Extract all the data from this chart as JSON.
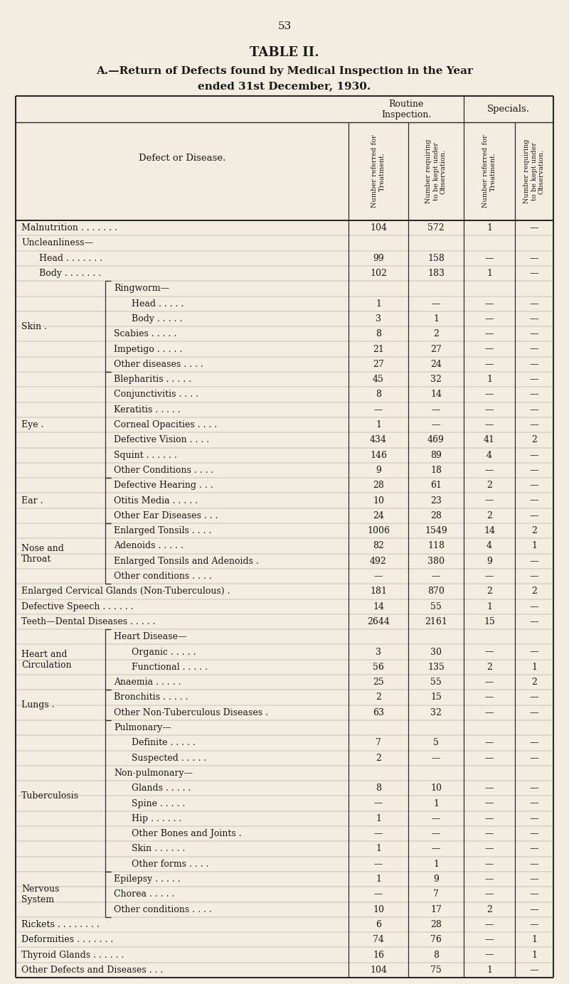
{
  "page_number": "53",
  "title1": "TABLE II.",
  "title2": "A.—Return of Defects found by Medical Inspection in the Year",
  "title3": "ended 31st December, 1930.",
  "col_h_routine": "Routine\nInspection.",
  "col_h_specials": "Specials.",
  "col_h1": "Number referred for\nTreatment.",
  "col_h2": "Number requiring\nto be kept under\nObservation.",
  "col_h3": "Number referred for\nTreatment.",
  "col_h4": "Number requiring\nto be kept under\nObservation.",
  "header_label": "Defect or Disease.",
  "rows": [
    {
      "label": "Malnutrition . . . . . . .",
      "indent": 0,
      "c1": "104",
      "c2": "572",
      "c3": "1",
      "c4": "—"
    },
    {
      "label": "Uncleanliness—",
      "indent": 0,
      "c1": "",
      "c2": "",
      "c3": "",
      "c4": ""
    },
    {
      "label": "Head . . . . . . .",
      "indent": 1,
      "c1": "99",
      "c2": "158",
      "c3": "—",
      "c4": "—"
    },
    {
      "label": "Body . . . . . . .",
      "indent": 1,
      "c1": "102",
      "c2": "183",
      "c3": "1",
      "c4": "—"
    },
    {
      "label": "Ringworm—",
      "indent": 2,
      "c1": "",
      "c2": "",
      "c3": "",
      "c4": ""
    },
    {
      "label": "Head . . . . .",
      "indent": 3,
      "c1": "1",
      "c2": "—",
      "c3": "—",
      "c4": "—"
    },
    {
      "label": "Body . . . . .",
      "indent": 3,
      "c1": "3",
      "c2": "1",
      "c3": "—",
      "c4": "—"
    },
    {
      "label": "Scabies . . . . .",
      "indent": 2,
      "c1": "8",
      "c2": "2",
      "c3": "—",
      "c4": "—"
    },
    {
      "label": "Impetigo . . . . .",
      "indent": 2,
      "c1": "21",
      "c2": "27",
      "c3": "—",
      "c4": "—"
    },
    {
      "label": "Other diseases . . . .",
      "indent": 2,
      "c1": "27",
      "c2": "24",
      "c3": "—",
      "c4": "—"
    },
    {
      "label": "Blepharitis . . . . .",
      "indent": 2,
      "c1": "45",
      "c2": "32",
      "c3": "1",
      "c4": "—"
    },
    {
      "label": "Conjunctivitis . . . .",
      "indent": 2,
      "c1": "8",
      "c2": "14",
      "c3": "—",
      "c4": "—"
    },
    {
      "label": "Keratitis . . . . .",
      "indent": 2,
      "c1": "—",
      "c2": "—",
      "c3": "—",
      "c4": "—"
    },
    {
      "label": "Corneal Opacities . . . .",
      "indent": 2,
      "c1": "1",
      "c2": "—",
      "c3": "—",
      "c4": "—"
    },
    {
      "label": "Defective Vision . . . .",
      "indent": 2,
      "c1": "434",
      "c2": "469",
      "c3": "41",
      "c4": "2"
    },
    {
      "label": "Squint . . . . . .",
      "indent": 2,
      "c1": "146",
      "c2": "89",
      "c3": "4",
      "c4": "—"
    },
    {
      "label": "Other Conditions . . . .",
      "indent": 2,
      "c1": "9",
      "c2": "18",
      "c3": "—",
      "c4": "—"
    },
    {
      "label": "Defective Hearing . . .",
      "indent": 2,
      "c1": "28",
      "c2": "61",
      "c3": "2",
      "c4": "—"
    },
    {
      "label": "Otitis Media . . . . .",
      "indent": 2,
      "c1": "10",
      "c2": "23",
      "c3": "—",
      "c4": "—"
    },
    {
      "label": "Other Ear Diseases . . .",
      "indent": 2,
      "c1": "24",
      "c2": "28",
      "c3": "2",
      "c4": "—"
    },
    {
      "label": "Enlarged Tonsils . . . .",
      "indent": 2,
      "c1": "1006",
      "c2": "1549",
      "c3": "14",
      "c4": "2"
    },
    {
      "label": "Adenoids . . . . .",
      "indent": 2,
      "c1": "82",
      "c2": "118",
      "c3": "4",
      "c4": "1"
    },
    {
      "label": "Enlarged Tonsils and Adenoids .",
      "indent": 2,
      "c1": "492",
      "c2": "380",
      "c3": "9",
      "c4": "—"
    },
    {
      "label": "Other conditions . . . .",
      "indent": 2,
      "c1": "—",
      "c2": "—",
      "c3": "—",
      "c4": "—"
    },
    {
      "label": "Enlarged Cervical Glands (Non-Tuberculous) .",
      "indent": 0,
      "c1": "181",
      "c2": "870",
      "c3": "2",
      "c4": "2"
    },
    {
      "label": "Defective Speech . . . . . .",
      "indent": 0,
      "c1": "14",
      "c2": "55",
      "c3": "1",
      "c4": "—"
    },
    {
      "label": "Teeth—Dental Diseases . . . . .",
      "indent": 0,
      "c1": "2644",
      "c2": "2161",
      "c3": "15",
      "c4": "—"
    },
    {
      "label": "Heart Disease—",
      "indent": 2,
      "c1": "",
      "c2": "",
      "c3": "",
      "c4": ""
    },
    {
      "label": "Organic . . . . .",
      "indent": 3,
      "c1": "3",
      "c2": "30",
      "c3": "—",
      "c4": "—"
    },
    {
      "label": "Functional . . . . .",
      "indent": 3,
      "c1": "56",
      "c2": "135",
      "c3": "2",
      "c4": "1"
    },
    {
      "label": "Anaemia . . . . .",
      "indent": 2,
      "c1": "25",
      "c2": "55",
      "c3": "—",
      "c4": "2"
    },
    {
      "label": "Bronchitis . . . . .",
      "indent": 2,
      "c1": "2",
      "c2": "15",
      "c3": "—",
      "c4": "—"
    },
    {
      "label": "Other Non-Tuberculous Diseases .",
      "indent": 2,
      "c1": "63",
      "c2": "32",
      "c3": "—",
      "c4": "—"
    },
    {
      "label": "Pulmonary—",
      "indent": 2,
      "c1": "",
      "c2": "",
      "c3": "",
      "c4": ""
    },
    {
      "label": "Definite . . . . .",
      "indent": 3,
      "c1": "7",
      "c2": "5",
      "c3": "—",
      "c4": "—"
    },
    {
      "label": "Suspected . . . . .",
      "indent": 3,
      "c1": "2",
      "c2": "—",
      "c3": "—",
      "c4": "—"
    },
    {
      "label": "Non-pulmonary—",
      "indent": 2,
      "c1": "",
      "c2": "",
      "c3": "",
      "c4": ""
    },
    {
      "label": "Glands . . . . .",
      "indent": 3,
      "c1": "8",
      "c2": "10",
      "c3": "—",
      "c4": "—"
    },
    {
      "label": "Spine . . . . .",
      "indent": 3,
      "c1": "—",
      "c2": "1",
      "c3": "—",
      "c4": "—"
    },
    {
      "label": "Hip . . . . . .",
      "indent": 3,
      "c1": "1",
      "c2": "—",
      "c3": "—",
      "c4": "—"
    },
    {
      "label": "Other Bones and Joints .",
      "indent": 3,
      "c1": "—",
      "c2": "—",
      "c3": "—",
      "c4": "—"
    },
    {
      "label": "Skin . . . . . .",
      "indent": 3,
      "c1": "1",
      "c2": "—",
      "c3": "—",
      "c4": "—"
    },
    {
      "label": "Other forms . . . .",
      "indent": 3,
      "c1": "—",
      "c2": "1",
      "c3": "—",
      "c4": "—"
    },
    {
      "label": "Epilepsy . . . . .",
      "indent": 2,
      "c1": "1",
      "c2": "9",
      "c3": "—",
      "c4": "—"
    },
    {
      "label": "Chorea . . . . .",
      "indent": 2,
      "c1": "—",
      "c2": "7",
      "c3": "—",
      "c4": "—"
    },
    {
      "label": "Other conditions . . . .",
      "indent": 2,
      "c1": "10",
      "c2": "17",
      "c3": "2",
      "c4": "—"
    },
    {
      "label": "Rickets . . . . . . . .",
      "indent": 0,
      "c1": "6",
      "c2": "28",
      "c3": "—",
      "c4": "—"
    },
    {
      "label": "Deformities . . . . . . .",
      "indent": 0,
      "c1": "74",
      "c2": "76",
      "c3": "—",
      "c4": "1"
    },
    {
      "label": "Thyroid Glands . . . . . .",
      "indent": 0,
      "c1": "16",
      "c2": "8",
      "c3": "—",
      "c4": "1"
    },
    {
      "label": "Other Defects and Diseases . . .",
      "indent": 0,
      "c1": "104",
      "c2": "75",
      "c3": "1",
      "c4": "—"
    }
  ],
  "group_spans": [
    {
      "label": "Skin",
      "dot": true,
      "start": 4,
      "end": 9
    },
    {
      "label": "Eye",
      "dot": true,
      "start": 10,
      "end": 16
    },
    {
      "label": "Ear",
      "dot": true,
      "start": 17,
      "end": 19
    },
    {
      "label": "Nose and\nThroat",
      "dot": false,
      "start": 20,
      "end": 23
    },
    {
      "label": "Heart and\nCirculation",
      "dot": false,
      "start": 27,
      "end": 30
    },
    {
      "label": "Lungs",
      "dot": true,
      "start": 31,
      "end": 32
    },
    {
      "label": "Tuberculosis",
      "dot": false,
      "start": 33,
      "end": 42
    },
    {
      "label": "Nervous\nSystem",
      "dot": false,
      "start": 43,
      "end": 45
    }
  ],
  "bg_color": "#f2ede0",
  "text_color": "#1a1a1a",
  "line_color": "#2a2a2a"
}
